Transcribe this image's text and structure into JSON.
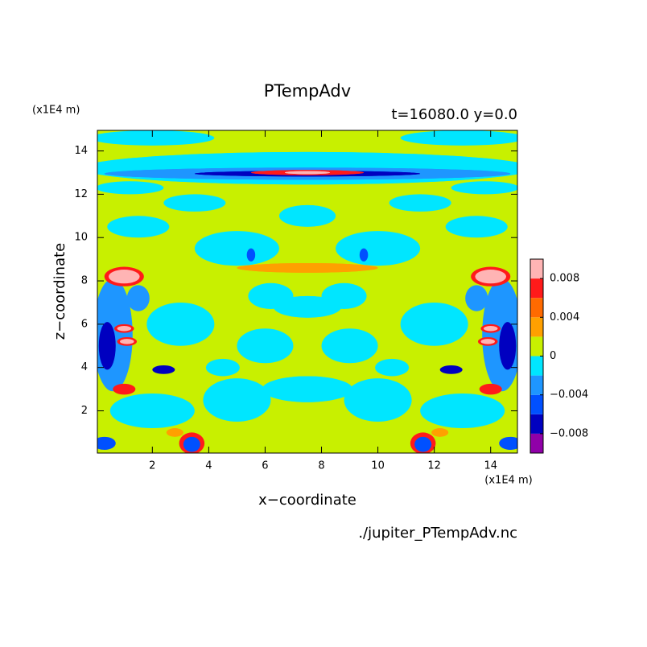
{
  "chart_data": {
    "type": "contourf",
    "title": "PTempAdv",
    "subtitle": "t=16080.0 y=0.0",
    "x_label": "x−coordinate",
    "y_label": "z−coordinate",
    "x_unit": "(x1E4 m)",
    "y_unit": "(x1E4 m)",
    "source": "./jupiter_PTempAdv.nc",
    "xlim": [
      0.05,
      14.95
    ],
    "ylim": [
      0.05,
      14.95
    ],
    "xticks": [
      2,
      4,
      6,
      8,
      10,
      12,
      14
    ],
    "yticks": [
      2,
      4,
      6,
      8,
      10,
      12,
      14
    ],
    "colorbar": {
      "levels": [
        -0.01,
        -0.008,
        -0.006,
        -0.004,
        -0.002,
        0,
        0.002,
        0.004,
        0.006,
        0.008,
        0.01
      ],
      "colors": [
        "#9000a8",
        "#0000c0",
        "#0050ff",
        "#1e96ff",
        "#00e6ff",
        "#c8f000",
        "#ffa000",
        "#ff6a00",
        "#ff1a1a",
        "#ffb4b4"
      ],
      "ticks": [
        {
          "value": -0.008,
          "label": "−0.008"
        },
        {
          "value": -0.004,
          "label": "−0.004"
        },
        0,
        0.004,
        0.008
      ]
    }
  }
}
